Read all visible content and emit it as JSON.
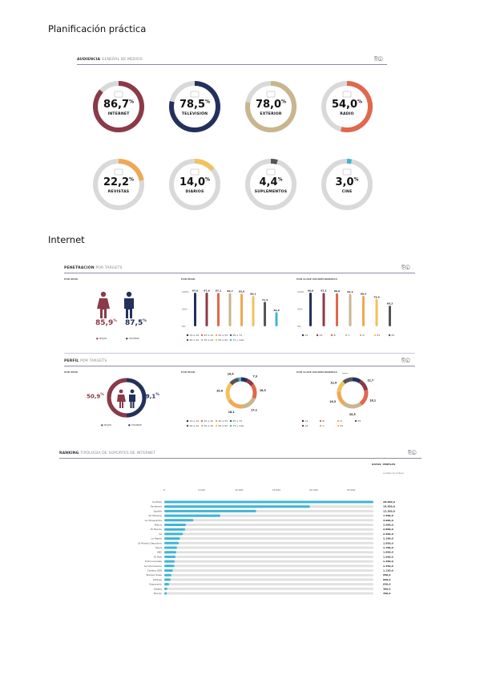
{
  "headings": {
    "planificacion": "Planificación práctica",
    "internet": "Internet"
  },
  "audiencia": {
    "title_bold": "AUDIENCIA",
    "title_light": "GENERAL DE MEDIOS",
    "gauges": [
      {
        "value": 86.7,
        "display": "86,7",
        "label": "INTERNET",
        "color": "#8b3a48",
        "icon": "laptop-icon"
      },
      {
        "value": 78.5,
        "display": "78,5",
        "label": "TELEVISIÓN",
        "color": "#24305c",
        "icon": "tv-icon"
      },
      {
        "value": 78.0,
        "display": "78,0",
        "label": "EXTERIOR",
        "color": "#c9b58e",
        "icon": "billboard-icon"
      },
      {
        "value": 54.0,
        "display": "54,0",
        "label": "RADIO",
        "color": "#e0684c",
        "icon": "radio-icon"
      },
      {
        "value": 22.2,
        "display": "22,2",
        "label": "REVISTAS",
        "color": "#f0a854",
        "icon": "magazine-icon"
      },
      {
        "value": 14.0,
        "display": "14,0",
        "label": "DIARIOS",
        "color": "#f2c25e",
        "icon": "newspaper-icon"
      },
      {
        "value": 4.4,
        "display": "4,4",
        "label": "SUPLEMENTOS",
        "color": "#555555",
        "icon": "supplement-icon"
      },
      {
        "value": 3.0,
        "display": "3,0",
        "label": "CINE",
        "color": "#3fb5d4",
        "icon": "cinema-icon"
      }
    ],
    "pct_suffix": "%"
  },
  "penetracion": {
    "title_bold": "PENETRACIÓN",
    "title_light": "POR TARGETS",
    "sexo_label": "POR SEXO",
    "edad_label": "POR EDAD",
    "clase_label": "POR CLASE SOCIOECONÓMICA",
    "mujer": "85,9",
    "hombre": "87,5",
    "legend_mujer": "MUJER",
    "legend_hombre": "HOMBRE",
    "edad_ticks": [
      "100%",
      "50%",
      "0%"
    ],
    "edad_chart": {
      "type": "bar",
      "categories": [
        "14 a 19",
        "20 a 24",
        "25 a 34",
        "35 a 44",
        "45 a 54",
        "55 a 64",
        "65 a 74",
        "75 y más"
      ],
      "values": [
        97.6,
        97.9,
        97.1,
        96.7,
        95.0,
        88.1,
        71.3,
        40.9
      ],
      "labels": [
        "97,6",
        "97,9",
        "97,1",
        "96,7",
        "95,0",
        "88,1",
        "71,3",
        "40,9"
      ],
      "colors": [
        "#24305c",
        "#8b3a48",
        "#e0684c",
        "#c9b58e",
        "#f0a854",
        "#f2c25e",
        "#555555",
        "#3fb5d4"
      ],
      "ylim": [
        0,
        100
      ]
    },
    "edad_legend": [
      "14 a 19",
      "20 a 24",
      "25 a 34",
      "35 a 44",
      "45 a 54",
      "55 a 64",
      "65 a 74",
      "75 y más"
    ],
    "clase_ticks": [
      "100%",
      "50%",
      "0%"
    ],
    "clase_chart": {
      "type": "bar",
      "categories": [
        "A1",
        "A2",
        "B",
        "C",
        "D",
        "E1",
        "E2"
      ],
      "values": [
        98.0,
        97.1,
        96.0,
        94.1,
        88.4,
        79.6,
        60.3
      ],
      "labels": [
        "98,0",
        "97,1",
        "96,0",
        "94,1",
        "88,4",
        "79,6",
        "60,3"
      ],
      "colors": [
        "#24305c",
        "#8b3a48",
        "#e0684c",
        "#c9b58e",
        "#f0a854",
        "#f2c25e",
        "#555555"
      ],
      "ylim": [
        0,
        100
      ]
    },
    "clase_legend": [
      "A1",
      "A2",
      "B",
      "C",
      "D",
      "E1",
      "E2"
    ]
  },
  "perfil": {
    "title_bold": "PERFIL",
    "title_light": "POR TARGETS",
    "sexo_label": "POR SEXO",
    "edad_label": "POR EDAD",
    "clase_label": "POR CLASE SOCIOECONÓMICA",
    "mujer": "50,9",
    "hombre": "49,1",
    "legend_mujer": "MUJER",
    "legend_hombre": "HOMBRE",
    "edad_donut": {
      "type": "pie",
      "categories": [
        "14 a 19",
        "20 a 24",
        "25 a 34",
        "35 a 44",
        "45 a 54",
        "55 a 64",
        "65 a 74",
        "75 y más"
      ],
      "values": [
        7.1,
        7.9,
        16.3,
        17.1,
        18.1,
        20.0,
        10.4,
        3.0
      ],
      "labels": [
        "7,1",
        "7,9",
        "16,3",
        "17,1",
        "18,1",
        "20,0",
        "10,4",
        "3,0"
      ],
      "colors": [
        "#24305c",
        "#8b3a48",
        "#e0684c",
        "#c9b58e",
        "#f0a854",
        "#f2c25e",
        "#555555",
        "#3fb5d4"
      ]
    },
    "edad_legend": [
      "14 a 19",
      "20 a 24",
      "25 a 34",
      "35 a 44",
      "45 a 54",
      "55 a 64",
      "65 a 74",
      "75 y más"
    ],
    "clase_donut": {
      "type": "pie",
      "categories": [
        "A1",
        "A2",
        "B",
        "C",
        "D",
        "E1",
        "E2"
      ],
      "values": [
        9.1,
        12.7,
        18.1,
        20.5,
        16.3,
        12.4,
        11.0
      ],
      "labels": [
        "9,1",
        "12,7",
        "18,1",
        "20,5",
        "16,3",
        "12,4",
        "11,0"
      ],
      "colors": [
        "#24305c",
        "#8b3a48",
        "#e0684c",
        "#c9b58e",
        "#f0a854",
        "#f2c25e",
        "#555555"
      ]
    },
    "clase_legend": [
      "A1",
      "A2",
      "B",
      "C",
      "D",
      "E1",
      "E2"
    ]
  },
  "ranking": {
    "title_bold": "RANKING",
    "title_light": "TIPOLOGÍA DE SOPORTES DE INTERNET",
    "selector": "DATOS: PERFILES",
    "sub": "audiencia (miles)",
    "axis_ticks": [
      "0",
      "5.000",
      "10.000",
      "15.000",
      "20.000",
      "25.000"
    ],
    "chart_data": {
      "type": "bar",
      "categories": [
        "YouTube",
        "Facebook",
        "Spotify",
        "20 Minutos",
        "La Vanguardia",
        "Marca",
        "El Mundo",
        "As",
        "La Razón",
        "El Mundo Deportivo",
        "Sport",
        "ABC",
        "El País",
        "El Economista",
        "La Información",
        "Cadena SER",
        "Europa Press",
        "Infobae",
        "Expansión",
        "Xataka",
        "Mundo"
      ],
      "values": [
        28000,
        19500,
        12300,
        7500,
        3900,
        2900,
        2800,
        2500,
        2100,
        1950,
        1700,
        1600,
        1500,
        1400,
        1350,
        1150,
        950,
        850,
        650,
        400,
        350
      ],
      "labels": [
        "28.000,0",
        "19.500,0",
        "12.300,0",
        "7.500,0",
        "3.900,0",
        "2.900,0",
        "2.800,0",
        "2.500,0",
        "2.100,0",
        "1.950,0",
        "1.700,0",
        "1.600,0",
        "1.500,0",
        "1.400,0",
        "1.350,0",
        "1.150,0",
        "950,0",
        "850,0",
        "650,0",
        "400,0",
        "350,0"
      ],
      "xlim": [
        0,
        28000
      ],
      "color": "#3fb5d4",
      "track_color": "#e1e1e1"
    }
  }
}
